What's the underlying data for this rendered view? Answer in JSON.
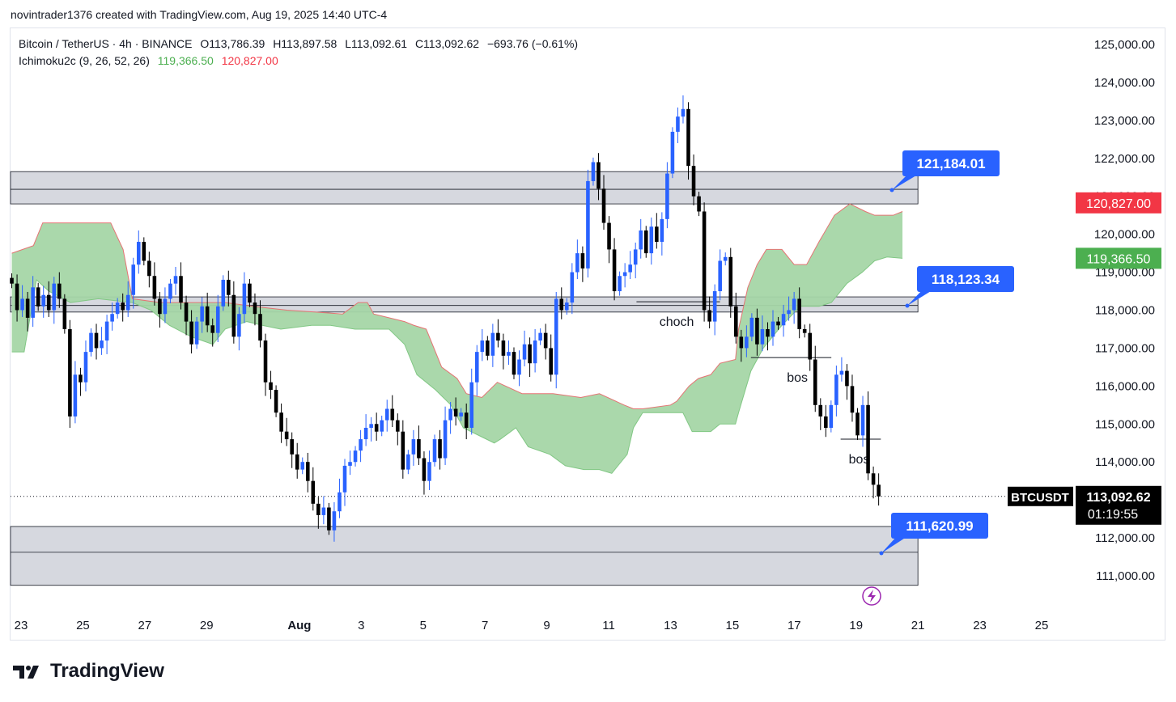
{
  "header": {
    "credit": "novintrader1376 created with TradingView.com, Aug 19, 2025 14:40 UTC-4"
  },
  "legend": {
    "symbol": "Bitcoin / TetherUS · 4h · BINANCE",
    "open": "O113,786.39",
    "high": "H113,897.58",
    "low": "L113,092.61",
    "close": "C113,092.62",
    "change": "−693.76 (−0.61%)",
    "indicator": "Ichimoku2c (9, 26, 52, 26)",
    "ind_val1": "119,366.50",
    "ind_val2": "120,827.00"
  },
  "footer": {
    "brand": "TradingView"
  },
  "colors": {
    "up": "#2962ff",
    "down": "#000000",
    "cloud": "#a5d6a7",
    "cloud_edge": "#e57373",
    "zone": "#d1d4dc",
    "callout": "#2962ff",
    "red_label": "#f23645",
    "green_label": "#4caf50"
  },
  "chart_data": {
    "type": "candlestick",
    "symbol": "BTCUSDT",
    "timeframe": "4h",
    "ylim": [
      110700,
      125300
    ],
    "y_ticks": [
      "125,000.00",
      "124,000.00",
      "123,000.00",
      "122,000.00",
      "121,000.00",
      "120,000.00",
      "119,000.00",
      "118,000.00",
      "117,000.00",
      "116,000.00",
      "115,000.00",
      "114,000.00",
      "113,000.00",
      "112,000.00",
      "111,000.00"
    ],
    "y_tick_values": [
      125000,
      124000,
      123000,
      122000,
      121000,
      120000,
      119000,
      118000,
      117000,
      116000,
      115000,
      114000,
      113000,
      112000,
      111000
    ],
    "x_ticks": [
      "23",
      "25",
      "27",
      "29",
      "Aug",
      "3",
      "5",
      "7",
      "9",
      "11",
      "13",
      "15",
      "17",
      "19",
      "21",
      "23",
      "25"
    ],
    "x_tick_days": [
      -9,
      -7,
      -5,
      -3,
      0,
      2,
      4,
      6,
      8,
      10,
      12,
      14,
      16,
      18,
      20,
      22,
      24
    ],
    "x_range_days": [
      -9.3,
      25.7
    ],
    "last_day": 18.73,
    "candles_start_day": -9.3,
    "bar_hours": 4,
    "closes": [
      118700,
      118000,
      118300,
      117800,
      118600,
      118100,
      118400,
      118000,
      118700,
      118300,
      117500,
      115200,
      116300,
      116100,
      116900,
      117400,
      117000,
      117200,
      117700,
      117900,
      118200,
      118000,
      118400,
      119200,
      119800,
      119300,
      118900,
      118300,
      117900,
      118300,
      118700,
      118900,
      118200,
      117700,
      117100,
      117700,
      118100,
      117600,
      117400,
      118100,
      118800,
      118400,
      117300,
      117900,
      118700,
      118200,
      117900,
      117200,
      116100,
      115900,
      115300,
      114800,
      114600,
      114200,
      113800,
      114000,
      113500,
      112900,
      112600,
      112800,
      112200,
      112700,
      113200,
      113900,
      114000,
      114300,
      114600,
      114900,
      115000,
      114800,
      115100,
      115400,
      115100,
      114800,
      113800,
      114200,
      114600,
      114100,
      113500,
      114000,
      114600,
      114100,
      115100,
      115400,
      115200,
      115300,
      114900,
      116100,
      116900,
      117200,
      116800,
      117400,
      117200,
      116800,
      116900,
      116300,
      116700,
      117100,
      116600,
      117200,
      117400,
      117000,
      116300,
      118300,
      118000,
      118200,
      119000,
      119500,
      119100,
      121400,
      121900,
      121200,
      120300,
      119600,
      118500,
      118900,
      119000,
      119200,
      119600,
      120100,
      119500,
      120200,
      119800,
      120400,
      121600,
      122700,
      123100,
      123300,
      121800,
      121000,
      120600,
      118000,
      117700,
      118500,
      119300,
      119400,
      118100,
      117300,
      117000,
      117300,
      117800,
      117100,
      117500,
      117300,
      117700,
      117600,
      117900,
      118000,
      118300,
      117500,
      117400,
      116700,
      115500,
      115200,
      114900,
      115500,
      116300,
      116400,
      116000,
      115300,
      114700,
      115500,
      113700,
      113400,
      113092.62
    ],
    "series": [
      {
        "name": "Ichimoku2c",
        "value": "119,366.50"
      },
      {
        "name": "Ichimoku2c",
        "value": "120,827.00"
      }
    ],
    "zones": [
      {
        "from": 120800,
        "to": 121650,
        "mid": 121184.01,
        "label": "121,184.01"
      },
      {
        "from": 117950,
        "to": 118350,
        "mid": 118123.34,
        "label": "118,123.34"
      },
      {
        "from": 110750,
        "to": 112300,
        "mid": 111620.99,
        "label": "111,620.99"
      }
    ],
    "annotations": [
      {
        "text": "choch",
        "day": 12.2,
        "price": 118220,
        "line_from_day": 10.9,
        "line_to_day": 13.6
      },
      {
        "text": "bos",
        "day": 16.1,
        "price": 116750,
        "line_from_day": 14.6,
        "line_to_day": 17.2
      },
      {
        "text": "bos",
        "day": 18.1,
        "price": 114600,
        "line_from_day": 17.5,
        "line_to_day": 18.8
      }
    ],
    "axis_labels": {
      "red": {
        "value": 120827,
        "text": "120,827.00"
      },
      "green": {
        "value": 119366.5,
        "text": "119,366.50"
      },
      "last": {
        "value": 113092.62,
        "text": "113,092.62",
        "timer": "01:19:55",
        "symbol_tag": "BTCUSDT"
      }
    },
    "cloud_upper": [
      [
        -9.3,
        119500
      ],
      [
        -8.6,
        119700
      ],
      [
        -8.3,
        120300
      ],
      [
        -6.1,
        120300
      ],
      [
        -5.7,
        119600
      ],
      [
        -5.4,
        118300
      ],
      [
        -4.5,
        118200
      ],
      [
        -3.3,
        118200
      ],
      [
        -2.4,
        118200
      ],
      [
        -1.5,
        118100
      ],
      [
        -0.4,
        118000
      ],
      [
        1.4,
        117900
      ],
      [
        1.9,
        118200
      ],
      [
        2.2,
        118200
      ],
      [
        2.4,
        117900
      ],
      [
        3.4,
        117700
      ],
      [
        3.7,
        117600
      ],
      [
        4.1,
        117500
      ],
      [
        4.6,
        116500
      ],
      [
        5.1,
        116200
      ],
      [
        5.4,
        115800
      ],
      [
        5.9,
        115700
      ],
      [
        6.4,
        116100
      ],
      [
        7.2,
        115800
      ],
      [
        8.2,
        115800
      ],
      [
        9.1,
        115700
      ],
      [
        9.7,
        115800
      ],
      [
        10.5,
        115500
      ],
      [
        10.8,
        115400
      ],
      [
        11.1,
        115400
      ],
      [
        12.0,
        115500
      ],
      [
        12.2,
        115600
      ],
      [
        12.6,
        116000
      ],
      [
        12.9,
        116200
      ],
      [
        13.3,
        116300
      ],
      [
        13.6,
        116600
      ],
      [
        14.1,
        116700
      ],
      [
        14.2,
        117500
      ],
      [
        14.5,
        118600
      ],
      [
        14.8,
        119200
      ],
      [
        15.1,
        119600
      ],
      [
        15.6,
        119600
      ],
      [
        16.0,
        119200
      ],
      [
        16.4,
        119200
      ],
      [
        16.8,
        119800
      ],
      [
        17.3,
        120500
      ],
      [
        17.8,
        120800
      ],
      [
        18.3,
        120600
      ],
      [
        18.6,
        120500
      ],
      [
        18.8,
        120500
      ],
      [
        19.2,
        120500
      ],
      [
        19.5,
        120600
      ]
    ],
    "cloud_lower": [
      [
        -9.3,
        116900
      ],
      [
        -8.9,
        116900
      ],
      [
        -8.5,
        118800
      ],
      [
        -8.1,
        118500
      ],
      [
        -7.4,
        118200
      ],
      [
        -6.5,
        118300
      ],
      [
        -5.4,
        118200
      ],
      [
        -4.8,
        118000
      ],
      [
        -4.2,
        117600
      ],
      [
        -3.5,
        117300
      ],
      [
        -2.8,
        117100
      ],
      [
        -2.4,
        117500
      ],
      [
        -1.7,
        117700
      ],
      [
        -1.2,
        117600
      ],
      [
        -0.6,
        117500
      ],
      [
        0.4,
        117600
      ],
      [
        1.0,
        117600
      ],
      [
        1.8,
        117500
      ],
      [
        2.9,
        117500
      ],
      [
        3.4,
        117100
      ],
      [
        3.8,
        116300
      ],
      [
        4.4,
        115900
      ],
      [
        4.9,
        115500
      ],
      [
        5.3,
        114900
      ],
      [
        5.8,
        114700
      ],
      [
        6.3,
        114500
      ],
      [
        6.5,
        114600
      ],
      [
        7.0,
        114900
      ],
      [
        7.4,
        114400
      ],
      [
        8.1,
        114200
      ],
      [
        8.6,
        113900
      ],
      [
        9.2,
        113800
      ],
      [
        9.7,
        113800
      ],
      [
        10.1,
        113700
      ],
      [
        10.6,
        114200
      ],
      [
        10.8,
        114900
      ],
      [
        11.1,
        115300
      ],
      [
        12.0,
        115300
      ],
      [
        12.4,
        115300
      ],
      [
        12.7,
        114800
      ],
      [
        13.3,
        114800
      ],
      [
        13.6,
        115000
      ],
      [
        14.1,
        115000
      ],
      [
        14.2,
        115300
      ],
      [
        14.6,
        116400
      ],
      [
        15.0,
        117000
      ],
      [
        15.6,
        117600
      ],
      [
        16.2,
        118100
      ],
      [
        16.8,
        118100
      ],
      [
        17.2,
        118200
      ],
      [
        17.7,
        118700
      ],
      [
        18.2,
        119000
      ],
      [
        18.6,
        119300
      ],
      [
        19.0,
        119400
      ],
      [
        19.5,
        119366
      ]
    ]
  }
}
